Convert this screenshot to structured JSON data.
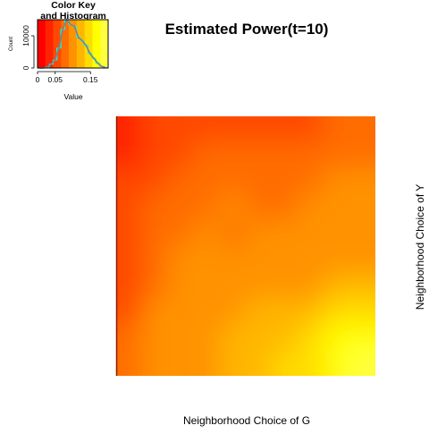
{
  "chart_data": [
    {
      "type": "heatmap",
      "title": "Estimated Power(t=10)",
      "xlabel": "Neighborhood Choice of G",
      "ylabel": "Neighborhood Choice of Y",
      "grid": false,
      "rows": 10,
      "cols": 10,
      "value_range": [
        0,
        0.2
      ],
      "colorscale": [
        "#ff0000",
        "#ff2400",
        "#ff4900",
        "#ff6d00",
        "#ff9200",
        "#ffb600",
        "#ffdb00",
        "#ffff00",
        "#ffff40"
      ],
      "values": [
        [
          0.04,
          0.05,
          0.05,
          0.05,
          0.06,
          0.06,
          0.06,
          0.06,
          0.07,
          0.07
        ],
        [
          0.04,
          0.05,
          0.06,
          0.07,
          0.07,
          0.07,
          0.07,
          0.07,
          0.08,
          0.08
        ],
        [
          0.05,
          0.06,
          0.07,
          0.08,
          0.08,
          0.08,
          0.08,
          0.08,
          0.09,
          0.09
        ],
        [
          0.05,
          0.07,
          0.08,
          0.08,
          0.09,
          0.08,
          0.08,
          0.09,
          0.09,
          0.1
        ],
        [
          0.05,
          0.07,
          0.08,
          0.09,
          0.08,
          0.09,
          0.09,
          0.09,
          0.1,
          0.1
        ],
        [
          0.06,
          0.08,
          0.09,
          0.09,
          0.09,
          0.09,
          0.1,
          0.1,
          0.1,
          0.11
        ],
        [
          0.06,
          0.08,
          0.09,
          0.1,
          0.1,
          0.1,
          0.11,
          0.11,
          0.12,
          0.12
        ],
        [
          0.06,
          0.09,
          0.1,
          0.1,
          0.11,
          0.12,
          0.12,
          0.13,
          0.14,
          0.15
        ],
        [
          0.07,
          0.09,
          0.1,
          0.11,
          0.12,
          0.12,
          0.13,
          0.14,
          0.16,
          0.17
        ],
        [
          0.07,
          0.09,
          0.1,
          0.11,
          0.12,
          0.13,
          0.14,
          0.15,
          0.17,
          0.19
        ]
      ]
    },
    {
      "type": "bar",
      "title": "Color Key and Histogram",
      "title_lines": [
        "Color Key",
        "and Histogram"
      ],
      "xlabel": "Value",
      "ylabel": "Count",
      "xlim": [
        0,
        0.2
      ],
      "ylim": [
        0,
        15000
      ],
      "xticks": [
        {
          "value": 0,
          "label": "0"
        },
        {
          "value": 0.05,
          "label": "0.05"
        },
        {
          "value": 0.15,
          "label": "0.15"
        }
      ],
      "yticks": [
        {
          "value": 0,
          "label": "0"
        },
        {
          "value": 10000,
          "label": "10000"
        }
      ],
      "bin_edges": [
        0.0,
        0.011,
        0.022,
        0.033,
        0.044,
        0.055,
        0.066,
        0.077,
        0.088,
        0.099,
        0.11,
        0.121,
        0.132,
        0.143,
        0.154,
        0.165,
        0.176,
        0.187,
        0.198
      ],
      "counts": [
        0,
        0,
        300,
        1200,
        2500,
        6200,
        12000,
        15000,
        13500,
        13000,
        9500,
        8500,
        7000,
        4500,
        3000,
        1500,
        500,
        150
      ],
      "histogram_color": "#00ffff",
      "density_color": "#808080"
    }
  ]
}
